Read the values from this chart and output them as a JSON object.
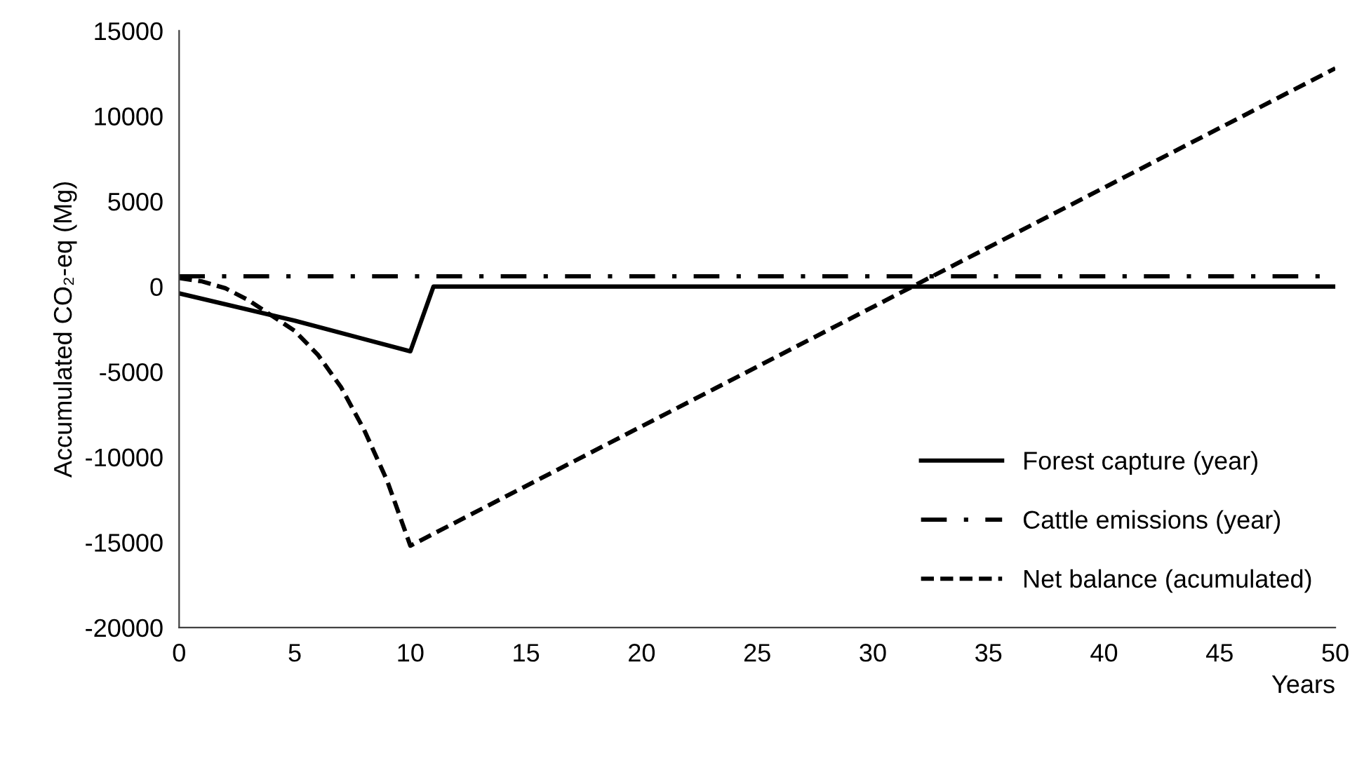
{
  "chart_data": {
    "type": "line",
    "ylabel": "Accumulated CO₂-eq (Mg)",
    "xlabel": "Years",
    "xlim": [
      0,
      50
    ],
    "xticks": [
      0,
      5,
      10,
      15,
      20,
      25,
      30,
      35,
      40,
      45,
      50
    ],
    "ylim": [
      -20000,
      15000
    ],
    "yticks": [
      -20000,
      -15000,
      -10000,
      -5000,
      0,
      5000,
      10000,
      15000
    ],
    "grid": false,
    "legend": "bottom right",
    "marker": "none",
    "series": [
      {
        "name": "Forest capture (year)",
        "color": "#000000",
        "line_style": "solid",
        "x": [
          0,
          5,
          10,
          11,
          50
        ],
        "values": [
          -400,
          -2000,
          -3800,
          0,
          0
        ]
      },
      {
        "name": "Cattle emissions (year)",
        "color": "#000000",
        "line_style": "dashdot",
        "x": [
          0,
          50
        ],
        "values": [
          600,
          600
        ]
      },
      {
        "name": "Net balance (acumulated)",
        "color": "#000000",
        "line_style": "dashed",
        "x": [
          0,
          1,
          2,
          3,
          4,
          5,
          6,
          7,
          8,
          9,
          10,
          50
        ],
        "values": [
          500,
          300,
          -100,
          -800,
          -1700,
          -2600,
          -4000,
          -5900,
          -8400,
          -11400,
          -15200,
          12800
        ]
      }
    ]
  }
}
